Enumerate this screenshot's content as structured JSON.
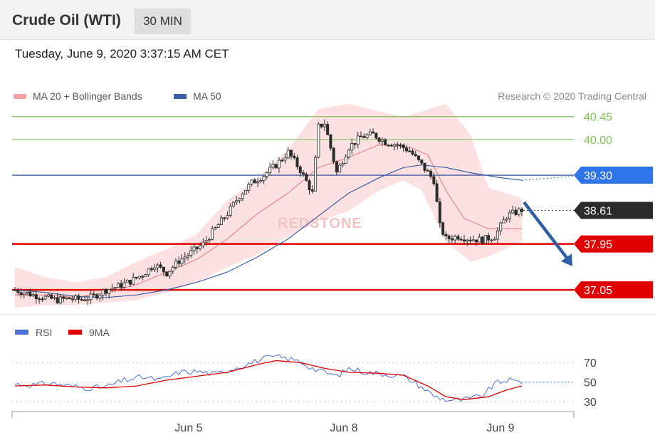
{
  "header": {
    "title": "Crude Oil (WTI)",
    "timeframe": "30 MIN"
  },
  "datetime": "Tuesday, June 9, 2020 3:37:15 AM CET",
  "legend": {
    "ma20": "MA 20 + Bollinger Bands",
    "ma50": "MA 50"
  },
  "credit": "Research © 2020 Trading Central",
  "watermark": "REDSTONE",
  "colors": {
    "resistance": "#7fc45a",
    "ma50": "#3a5ea8",
    "bands": "#f3a9a9",
    "ma20": "#e55a5a",
    "support": "#e00000",
    "price": "#2b2b2b",
    "rsi": "#4a6fd8",
    "rsi_ma": "#e00000",
    "arrow": "#2f5ea5",
    "badge_blue": "#2f74e8"
  },
  "chart_data": [
    {
      "type": "candlestick",
      "title": "Crude Oil (WTI)",
      "x_ticks": [
        "Jun 5",
        "Jun 8",
        "Jun 9"
      ],
      "y_range": [
        36.8,
        40.6
      ],
      "levels": [
        {
          "value": 40.45,
          "label": "40.45",
          "kind": "resistance"
        },
        {
          "value": 40.0,
          "label": "40.00",
          "kind": "resistance"
        },
        {
          "value": 39.3,
          "label": "39.30",
          "kind": "pivot"
        },
        {
          "value": 38.61,
          "label": "38.61",
          "kind": "last"
        },
        {
          "value": 37.95,
          "label": "37.95",
          "kind": "support"
        },
        {
          "value": 37.05,
          "label": "37.05",
          "kind": "target"
        }
      ],
      "close_path": [
        [
          0,
          37.05
        ],
        [
          6,
          36.95
        ],
        [
          10,
          36.9
        ],
        [
          14,
          36.85
        ],
        [
          18,
          36.88
        ],
        [
          22,
          36.86
        ],
        [
          26,
          36.92
        ],
        [
          30,
          37.05
        ],
        [
          34,
          37.12
        ],
        [
          38,
          37.22
        ],
        [
          42,
          37.35
        ],
        [
          46,
          37.55
        ],
        [
          50,
          37.38
        ],
        [
          54,
          37.62
        ],
        [
          58,
          37.78
        ],
        [
          62,
          37.95
        ],
        [
          66,
          38.25
        ],
        [
          70,
          38.55
        ],
        [
          74,
          38.9
        ],
        [
          78,
          39.15
        ],
        [
          82,
          39.3
        ],
        [
          86,
          39.5
        ],
        [
          90,
          39.75
        ],
        [
          94,
          39.4
        ],
        [
          98,
          38.95
        ],
        [
          100,
          40.25
        ],
        [
          102,
          40.32
        ],
        [
          106,
          39.35
        ],
        [
          110,
          39.85
        ],
        [
          114,
          40.05
        ],
        [
          118,
          40.1
        ],
        [
          122,
          39.95
        ],
        [
          126,
          39.9
        ],
        [
          130,
          39.78
        ],
        [
          134,
          39.5
        ],
        [
          138,
          39.2
        ],
        [
          140,
          38.3
        ],
        [
          142,
          38.05
        ],
        [
          146,
          38.1
        ],
        [
          150,
          38.05
        ],
        [
          154,
          38.03
        ],
        [
          158,
          38.1
        ],
        [
          162,
          38.5
        ],
        [
          167,
          38.62
        ]
      ],
      "ma20": [
        [
          0,
          36.95
        ],
        [
          10,
          36.95
        ],
        [
          20,
          36.9
        ],
        [
          30,
          37.0
        ],
        [
          40,
          37.15
        ],
        [
          50,
          37.4
        ],
        [
          60,
          37.65
        ],
        [
          70,
          38.05
        ],
        [
          80,
          38.55
        ],
        [
          90,
          38.95
        ],
        [
          100,
          39.45
        ],
        [
          110,
          39.65
        ],
        [
          120,
          39.9
        ],
        [
          130,
          39.85
        ],
        [
          136,
          39.7
        ],
        [
          142,
          39.0
        ],
        [
          148,
          38.45
        ],
        [
          156,
          38.25
        ],
        [
          167,
          38.25
        ]
      ],
      "ma50": [
        [
          0,
          37.05
        ],
        [
          10,
          37.0
        ],
        [
          20,
          36.92
        ],
        [
          30,
          36.9
        ],
        [
          40,
          36.95
        ],
        [
          50,
          37.05
        ],
        [
          60,
          37.2
        ],
        [
          70,
          37.4
        ],
        [
          80,
          37.7
        ],
        [
          90,
          38.05
        ],
        [
          100,
          38.5
        ],
        [
          110,
          38.95
        ],
        [
          120,
          39.25
        ],
        [
          128,
          39.45
        ],
        [
          134,
          39.5
        ],
        [
          142,
          39.45
        ],
        [
          150,
          39.35
        ],
        [
          160,
          39.25
        ],
        [
          167,
          39.2
        ]
      ],
      "bollinger_upper": [
        [
          0,
          37.5
        ],
        [
          10,
          37.3
        ],
        [
          20,
          37.2
        ],
        [
          30,
          37.3
        ],
        [
          40,
          37.6
        ],
        [
          50,
          37.85
        ],
        [
          60,
          38.15
        ],
        [
          70,
          38.8
        ],
        [
          80,
          39.25
        ],
        [
          90,
          39.8
        ],
        [
          100,
          40.6
        ],
        [
          110,
          40.7
        ],
        [
          120,
          40.55
        ],
        [
          128,
          40.45
        ],
        [
          134,
          40.55
        ],
        [
          142,
          40.7
        ],
        [
          150,
          40.1
        ],
        [
          156,
          39.05
        ],
        [
          167,
          38.85
        ]
      ],
      "bollinger_lower": [
        [
          0,
          36.7
        ],
        [
          10,
          36.75
        ],
        [
          20,
          36.75
        ],
        [
          30,
          36.8
        ],
        [
          40,
          36.85
        ],
        [
          50,
          37.0
        ],
        [
          60,
          37.2
        ],
        [
          70,
          37.5
        ],
        [
          80,
          37.75
        ],
        [
          90,
          38.1
        ],
        [
          100,
          38.4
        ],
        [
          110,
          38.6
        ],
        [
          120,
          39.0
        ],
        [
          128,
          39.2
        ],
        [
          134,
          39.0
        ],
        [
          142,
          38.0
        ],
        [
          150,
          37.6
        ],
        [
          156,
          37.7
        ],
        [
          167,
          38.0
        ]
      ]
    },
    {
      "type": "line",
      "title": "",
      "series": [
        {
          "name": "RSI"
        },
        {
          "name": "9MA"
        }
      ],
      "y_ticks": [
        70,
        50,
        30
      ],
      "y_range": [
        22,
        84
      ],
      "rsi": [
        [
          0,
          48
        ],
        [
          6,
          47
        ],
        [
          12,
          49
        ],
        [
          18,
          46
        ],
        [
          24,
          44
        ],
        [
          30,
          45
        ],
        [
          36,
          52
        ],
        [
          42,
          55
        ],
        [
          48,
          52
        ],
        [
          54,
          60
        ],
        [
          60,
          61
        ],
        [
          66,
          58
        ],
        [
          70,
          62
        ],
        [
          74,
          66
        ],
        [
          78,
          70
        ],
        [
          82,
          74
        ],
        [
          86,
          76
        ],
        [
          90,
          74
        ],
        [
          94,
          71
        ],
        [
          98,
          64
        ],
        [
          102,
          60
        ],
        [
          106,
          56
        ],
        [
          110,
          64
        ],
        [
          116,
          60
        ],
        [
          122,
          58
        ],
        [
          128,
          56
        ],
        [
          134,
          45
        ],
        [
          138,
          36
        ],
        [
          142,
          32
        ],
        [
          146,
          31
        ],
        [
          150,
          33
        ],
        [
          154,
          36
        ],
        [
          158,
          48
        ],
        [
          162,
          52
        ],
        [
          167,
          50
        ]
      ],
      "rsi_ma": [
        [
          0,
          46
        ],
        [
          10,
          47
        ],
        [
          20,
          45
        ],
        [
          30,
          44
        ],
        [
          40,
          46
        ],
        [
          50,
          52
        ],
        [
          60,
          56
        ],
        [
          70,
          60
        ],
        [
          80,
          68
        ],
        [
          86,
          72
        ],
        [
          94,
          70
        ],
        [
          102,
          64
        ],
        [
          110,
          60
        ],
        [
          120,
          59
        ],
        [
          128,
          57
        ],
        [
          136,
          46
        ],
        [
          142,
          35
        ],
        [
          148,
          32
        ],
        [
          156,
          35
        ],
        [
          162,
          42
        ],
        [
          167,
          46
        ]
      ]
    }
  ]
}
